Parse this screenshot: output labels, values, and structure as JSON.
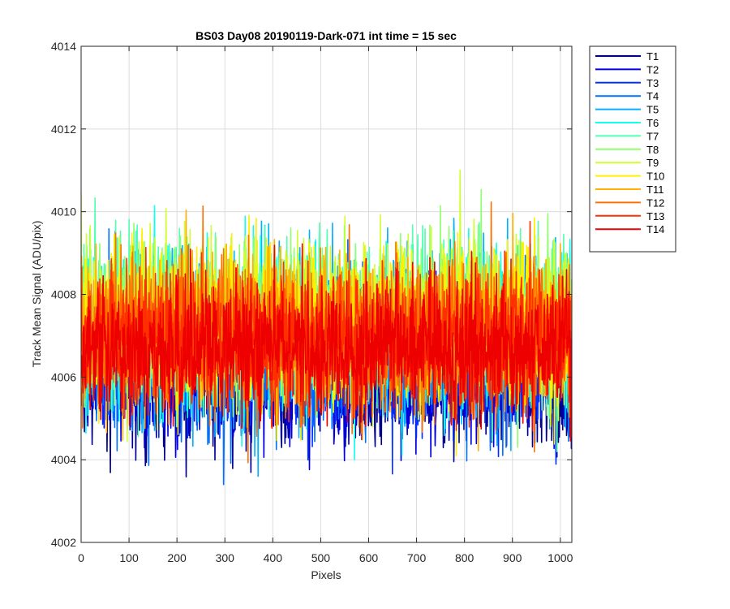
{
  "chart_data": {
    "type": "line",
    "title": "BS03 Day08 20190119-Dark-071 int time = 15 sec",
    "xlabel": "Pixels",
    "ylabel": "Track Mean Signal (ADU/pix)",
    "xlim": [
      0,
      1024
    ],
    "ylim": [
      4002,
      4014
    ],
    "x_ticks": [
      0,
      100,
      200,
      300,
      400,
      500,
      600,
      700,
      800,
      900,
      1000
    ],
    "y_ticks": [
      4002,
      4004,
      4006,
      4008,
      4010,
      4012,
      4014
    ],
    "grid": true,
    "legend_position": "outside-top-right",
    "samples_per_series": 1024,
    "series": [
      {
        "name": "T1",
        "color": "#00008f",
        "mean": 4005.9,
        "spread": 0.75,
        "peak_min": 4002.6,
        "peak_max": 4008.5
      },
      {
        "name": "T2",
        "color": "#0000df",
        "mean": 4006.0,
        "spread": 0.75,
        "peak_min": 4002.8,
        "peak_max": 4008.6
      },
      {
        "name": "T3",
        "color": "#0030ff",
        "mean": 4006.4,
        "spread": 0.85,
        "peak_min": 4003.2,
        "peak_max": 4009.2
      },
      {
        "name": "T4",
        "color": "#0070ff",
        "mean": 4006.7,
        "spread": 0.9,
        "peak_min": 4003.4,
        "peak_max": 4010.4
      },
      {
        "name": "T5",
        "color": "#00b0ff",
        "mean": 4007.0,
        "spread": 0.95,
        "peak_min": 4003.6,
        "peak_max": 4011.9
      },
      {
        "name": "T6",
        "color": "#10ffef",
        "mean": 4007.2,
        "spread": 0.95,
        "peak_min": 4004.0,
        "peak_max": 4011.1
      },
      {
        "name": "T7",
        "color": "#50ffaf",
        "mean": 4007.3,
        "spread": 0.95,
        "peak_min": 4004.2,
        "peak_max": 4010.9
      },
      {
        "name": "T8",
        "color": "#90ff6f",
        "mean": 4007.4,
        "spread": 0.95,
        "peak_min": 4004.3,
        "peak_max": 4011.6
      },
      {
        "name": "T9",
        "color": "#cfff30",
        "mean": 4007.4,
        "spread": 0.95,
        "peak_min": 4004.3,
        "peak_max": 4011.0
      },
      {
        "name": "T10",
        "color": "#ffef00",
        "mean": 4007.3,
        "spread": 0.95,
        "peak_min": 4004.1,
        "peak_max": 4012.1
      },
      {
        "name": "T11",
        "color": "#ffb000",
        "mean": 4007.1,
        "spread": 0.9,
        "peak_min": 4004.0,
        "peak_max": 4010.6
      },
      {
        "name": "T12",
        "color": "#ff7000",
        "mean": 4007.0,
        "spread": 0.9,
        "peak_min": 4003.9,
        "peak_max": 4010.8
      },
      {
        "name": "T13",
        "color": "#ff3000",
        "mean": 4006.9,
        "spread": 0.85,
        "peak_min": 4003.9,
        "peak_max": 4011.8
      },
      {
        "name": "T14",
        "color": "#ef0000",
        "mean": 4006.7,
        "spread": 0.8,
        "peak_min": 4003.2,
        "peak_max": 4010.3
      }
    ]
  }
}
